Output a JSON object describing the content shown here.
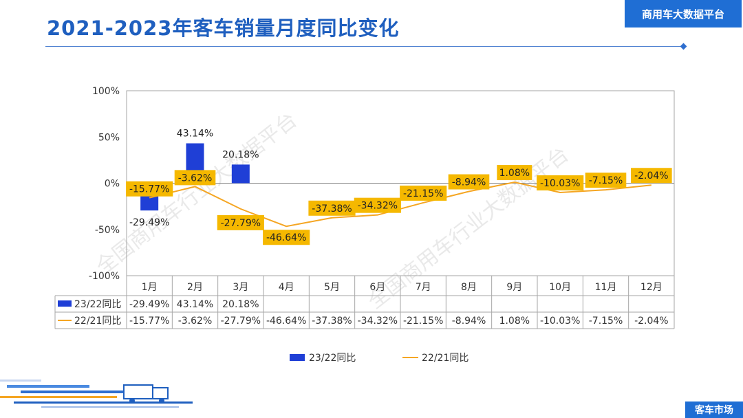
{
  "header": {
    "title": "2021-2023年客车销量月度同比变化",
    "brand": "商用车大数据平台"
  },
  "footer": {
    "badge": "客车市场"
  },
  "watermark": {
    "text": "全国商用车行业大数据平台"
  },
  "colors": {
    "title": "#1f5fbf",
    "brand_bg": "#1f6ed4",
    "bar": "#1f3fd6",
    "line": "#f5a623",
    "label_bg": "#f5b800"
  },
  "chart_data": {
    "type": "bar+line",
    "categories": [
      "1月",
      "2月",
      "3月",
      "4月",
      "5月",
      "6月",
      "7月",
      "8月",
      "9月",
      "10月",
      "11月",
      "12月"
    ],
    "series": [
      {
        "name": "23/22同比",
        "type": "bar",
        "values": [
          -29.49,
          43.14,
          20.18,
          null,
          null,
          null,
          null,
          null,
          null,
          null,
          null,
          null
        ],
        "labels": [
          "-29.49%",
          "43.14%",
          "20.18%",
          "",
          "",
          "",
          "",
          "",
          "",
          "",
          "",
          ""
        ]
      },
      {
        "name": "22/21同比",
        "type": "line",
        "values": [
          -15.77,
          -3.62,
          -27.79,
          -46.64,
          -37.38,
          -34.32,
          -21.15,
          -8.94,
          1.08,
          -10.03,
          -7.15,
          -2.04
        ],
        "labels": [
          "-15.77%",
          "-3.62%",
          "-27.79%",
          "-46.64%",
          "-37.38%",
          "-34.32%",
          "-21.15%",
          "-8.94%",
          "1.08%",
          "-10.03%",
          "-7.15%",
          "-2.04%"
        ]
      }
    ],
    "y_ticks": [
      100,
      50,
      0,
      -50,
      -100
    ],
    "y_tick_labels": [
      "100%",
      "50%",
      "0%",
      "-50%",
      "-100%"
    ],
    "ylim": [
      -100,
      100
    ],
    "legend": [
      "23/22同比",
      "22/21同比"
    ],
    "legend_position": "bottom"
  }
}
